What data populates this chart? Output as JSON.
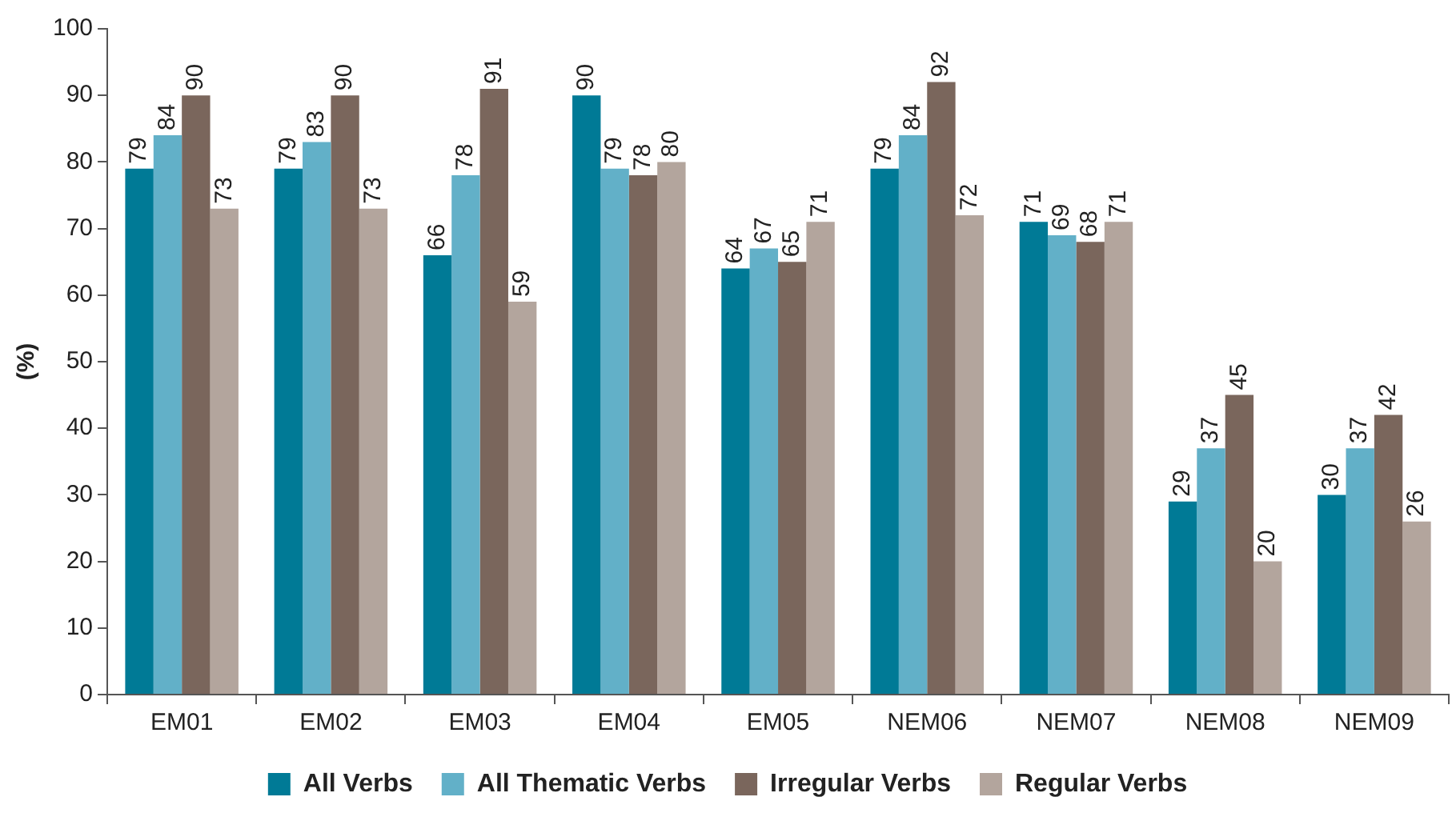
{
  "chart_data": {
    "type": "bar",
    "ylabel": "(%)",
    "categories": [
      "EM01",
      "EM02",
      "EM03",
      "EM04",
      "EM05",
      "NEM06",
      "NEM07",
      "NEM08",
      "NEM09"
    ],
    "series": [
      {
        "name": "All Verbs",
        "color": "#007a96",
        "values": [
          79,
          79,
          66,
          90,
          64,
          79,
          71,
          29,
          30
        ]
      },
      {
        "name": "All Thematic Verbs",
        "color": "#62b0c8",
        "values": [
          84,
          83,
          78,
          79,
          67,
          84,
          69,
          37,
          37
        ]
      },
      {
        "name": "Irregular Verbs",
        "color": "#7a665c",
        "values": [
          90,
          90,
          91,
          78,
          65,
          92,
          68,
          45,
          42
        ]
      },
      {
        "name": "Regular Verbs",
        "color": "#b3a59d",
        "values": [
          73,
          73,
          59,
          80,
          71,
          72,
          71,
          20,
          26
        ]
      }
    ],
    "ylim": [
      0,
      100
    ],
    "yticks": [
      0,
      10,
      20,
      30,
      40,
      50,
      60,
      70,
      80,
      90,
      100
    ],
    "grid": false,
    "legend": "bottom",
    "data_labels": true
  }
}
